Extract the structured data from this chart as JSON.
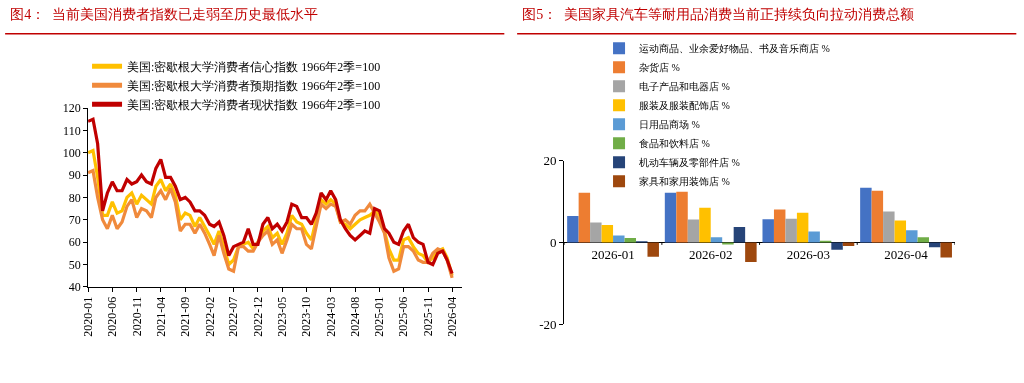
{
  "chart_data": [
    {
      "type": "line",
      "title": "图4：  当前美国消费者指数已走弱至历史最低水平",
      "legend": "top",
      "line_style": "solid",
      "marker": "none",
      "x": [
        "2020-01",
        "2020-02",
        "2020-03",
        "2020-04",
        "2020-05",
        "2020-06",
        "2020-07",
        "2020-08",
        "2020-09",
        "2020-10",
        "2020-11",
        "2020-12",
        "2021-01",
        "2021-02",
        "2021-03",
        "2021-04",
        "2021-05",
        "2021-06",
        "2021-07",
        "2021-08",
        "2021-09",
        "2021-10",
        "2021-11",
        "2021-12",
        "2022-01",
        "2022-02",
        "2022-03",
        "2022-04",
        "2022-05",
        "2022-06",
        "2022-07",
        "2022-08",
        "2022-09",
        "2022-10",
        "2022-11",
        "2022-12",
        "2023-01",
        "2023-02",
        "2023-03",
        "2023-04",
        "2023-05",
        "2023-06",
        "2023-07",
        "2023-08",
        "2023-09",
        "2023-10",
        "2023-11",
        "2023-12",
        "2024-01",
        "2024-02",
        "2024-03",
        "2024-04",
        "2024-05",
        "2024-06",
        "2024-07",
        "2024-08",
        "2024-09",
        "2024-10",
        "2024-11",
        "2024-12",
        "2025-01",
        "2025-02",
        "2025-03",
        "2025-04",
        "2025-05",
        "2025-06",
        "2025-07",
        "2025-08",
        "2025-09",
        "2025-10",
        "2025-11",
        "2025-12",
        "2026-01",
        "2026-02",
        "2026-03",
        "2026-04"
      ],
      "xlim": [
        "2020-01",
        "2026-06"
      ],
      "xticks": [
        {
          "value": "2020-01",
          "label": "2020-01"
        },
        {
          "value": "2020-06",
          "label": "2020-06"
        },
        {
          "value": "2020-11",
          "label": "2020-11"
        },
        {
          "value": "2021-04",
          "label": "2021-04"
        },
        {
          "value": "2021-09",
          "label": "2021-09"
        },
        {
          "value": "2022-02",
          "label": "2022-02"
        },
        {
          "value": "2022-07",
          "label": "2022-07"
        },
        {
          "value": "2022-12",
          "label": "2022-12"
        },
        {
          "value": "2023-05",
          "label": "2023-05"
        },
        {
          "value": "2023-10",
          "label": "2023-10"
        },
        {
          "value": "2024-03",
          "label": "2024-03"
        },
        {
          "value": "2024-08",
          "label": "2024-08"
        },
        {
          "value": "2025-01",
          "label": "2025-01"
        },
        {
          "value": "2025-06",
          "label": "2025-06"
        },
        {
          "value": "2025-11",
          "label": "2025-11"
        },
        {
          "value": "2026-04",
          "label": "2026-04"
        }
      ],
      "ylim": [
        40,
        120
      ],
      "yticks": [
        40,
        50,
        60,
        70,
        80,
        90,
        100,
        110,
        120
      ],
      "series": [
        {
          "name": "美国:密歇根大学消费者信心指数 1966年2季=100",
          "color": "#ffc000",
          "values": [
            100,
            101,
            89,
            72,
            72,
            78,
            73,
            74,
            80,
            82,
            77,
            81,
            79,
            77,
            85,
            88,
            83,
            86,
            81,
            70,
            73,
            72,
            67,
            71,
            67,
            63,
            59,
            65,
            58,
            50,
            52,
            58,
            59,
            60,
            57,
            60,
            65,
            67,
            62,
            64,
            59,
            64,
            72,
            69,
            68,
            64,
            61,
            70,
            79,
            77,
            79,
            77,
            69,
            68,
            66,
            68,
            70,
            71,
            72,
            74,
            72,
            65,
            57,
            52,
            52,
            61,
            62,
            58,
            55,
            54,
            51,
            53,
            56,
            57,
            53,
            45
          ]
        },
        {
          "name": "美国:密歇根大学消费者预期指数 1966年2季=100",
          "color": "#f08a3c",
          "values": [
            91,
            92,
            80,
            70,
            66,
            72,
            66,
            69,
            76,
            79,
            71,
            75,
            74,
            71,
            80,
            83,
            79,
            84,
            78,
            65,
            68,
            68,
            64,
            68,
            64,
            59,
            54,
            63,
            55,
            48,
            47,
            58,
            58,
            56,
            56,
            60,
            63,
            65,
            59,
            61,
            55,
            61,
            68,
            66,
            66,
            59,
            57,
            67,
            77,
            75,
            77,
            76,
            69,
            70,
            68,
            72,
            74,
            74,
            77,
            73,
            69,
            64,
            53,
            47,
            48,
            58,
            58,
            56,
            52,
            51,
            51,
            55,
            57,
            56,
            52,
            44
          ]
        },
        {
          "name": "美国:密歇根大学消费者现状指数 1966年2季=100",
          "color": "#c00000",
          "values": [
            114,
            115,
            104,
            74,
            82,
            87,
            83,
            83,
            88,
            86,
            87,
            90,
            87,
            86,
            93,
            97,
            89,
            89,
            85,
            79,
            80,
            78,
            74,
            74,
            72,
            68,
            67,
            69,
            63,
            54,
            58,
            59,
            60,
            66,
            59,
            59,
            68,
            71,
            66,
            68,
            65,
            69,
            77,
            76,
            71,
            71,
            68,
            73,
            82,
            79,
            83,
            79,
            70,
            66,
            63,
            61,
            63,
            65,
            64,
            75,
            74,
            66,
            64,
            60,
            59,
            65,
            68,
            62,
            60,
            59,
            51,
            50,
            55,
            56,
            52,
            46
          ]
        }
      ]
    },
    {
      "type": "bar",
      "title": "图5：  美国家具汽车等耐用品消费当前正持续负向拉动消费总额",
      "legend": "top",
      "categories": [
        "2026-01",
        "2026-02",
        "2026-03",
        "2026-04"
      ],
      "ylim": [
        -20,
        20
      ],
      "yticks": [
        -20,
        0,
        20
      ],
      "series": [
        {
          "name": "运动商品、业余爱好物品、书及音乐商店 %",
          "color": "#4472c4",
          "values": [
            6.5,
            12.2,
            5.7,
            13.4
          ]
        },
        {
          "name": "杂货店 %",
          "color": "#ed7d31",
          "values": [
            12.2,
            12.4,
            8.1,
            12.7
          ]
        },
        {
          "name": "电子产品和电器店 %",
          "color": "#a5a5a5",
          "values": [
            4.9,
            5.6,
            5.8,
            7.6
          ]
        },
        {
          "name": "服装及服装配饰店 %",
          "color": "#ffc000",
          "values": [
            4.3,
            8.5,
            7.3,
            5.4
          ]
        },
        {
          "name": "日用品商场 %",
          "color": "#5b9bd5",
          "values": [
            1.7,
            1.3,
            2.7,
            3.0
          ]
        },
        {
          "name": "食品和饮料店 %",
          "color": "#70ad47",
          "values": [
            1.1,
            -0.5,
            0.4,
            1.3
          ]
        },
        {
          "name": "机动车辆及零部件店 %",
          "color": "#264478",
          "values": [
            0.3,
            3.8,
            -1.8,
            -1.2
          ]
        },
        {
          "name": "家具和家用装饰店 %",
          "color": "#9e480e",
          "values": [
            -3.5,
            -4.8,
            -0.9,
            -3.7
          ]
        }
      ]
    }
  ]
}
